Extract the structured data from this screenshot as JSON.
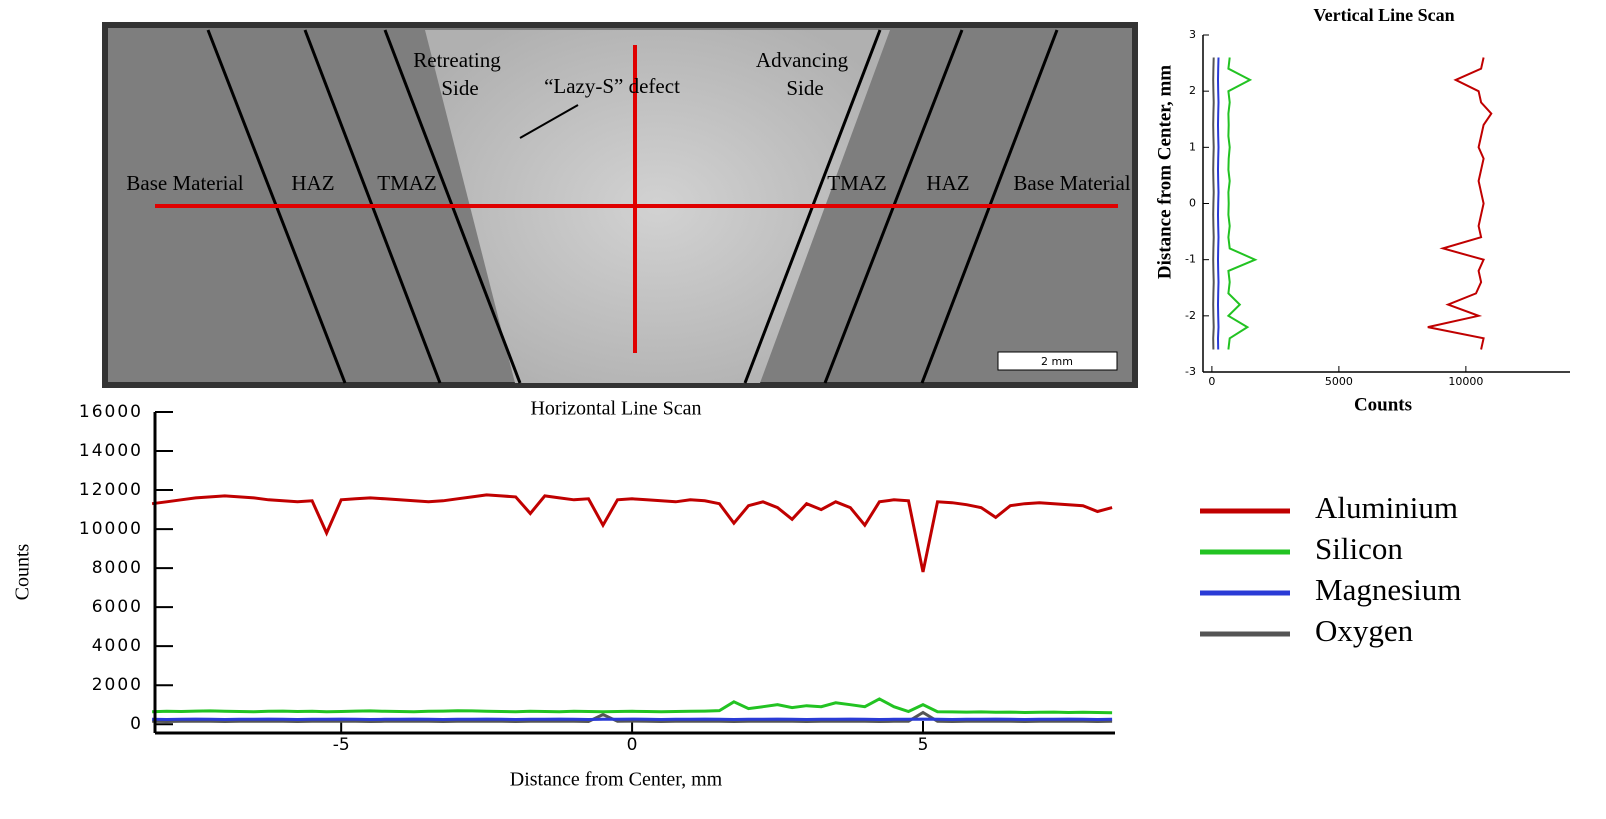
{
  "micrograph": {
    "labels": [
      "Retreating",
      "Side",
      "“Lazy-S” defect",
      "Advancing",
      "Side",
      "Base Material",
      "HAZ",
      "TMAZ",
      "TMAZ",
      "HAZ",
      "Base Material"
    ],
    "scale_bar": "2 mm"
  },
  "chart_data": [
    {
      "type": "line",
      "title": "Horizontal Line Scan",
      "x_label": "Distance from Center, mm",
      "y_label": "Counts",
      "x": [
        -8.25,
        -8,
        -7.75,
        -7.5,
        -7.25,
        -7,
        -6.75,
        -6.5,
        -6.25,
        -6,
        -5.75,
        -5.5,
        -5.25,
        -5,
        -4.75,
        -4.5,
        -4.25,
        -4,
        -3.75,
        -3.5,
        -3.25,
        -3,
        -2.75,
        -2.5,
        -2.25,
        -2,
        -1.75,
        -1.5,
        -1.25,
        -1,
        -0.75,
        -0.5,
        -0.25,
        0,
        0.25,
        0.5,
        0.75,
        1,
        1.25,
        1.5,
        1.75,
        2,
        2.25,
        2.5,
        2.75,
        3,
        3.25,
        3.5,
        3.75,
        4,
        4.25,
        4.5,
        4.75,
        5,
        5.25,
        5.5,
        5.75,
        6,
        6.25,
        6.5,
        6.75,
        7,
        7.25,
        7.5,
        7.75,
        8,
        8.25
      ],
      "series": [
        {
          "name": "Aluminium",
          "color": "#c00000",
          "values": [
            11300,
            11400,
            11500,
            11600,
            11650,
            11700,
            11650,
            11600,
            11500,
            11450,
            11400,
            11450,
            9800,
            11500,
            11550,
            11600,
            11550,
            11500,
            11450,
            11400,
            11450,
            11550,
            11650,
            11750,
            11700,
            11650,
            10800,
            11700,
            11600,
            11500,
            11550,
            10200,
            11500,
            11550,
            11500,
            11450,
            11400,
            11500,
            11450,
            11300,
            10300,
            11200,
            11400,
            11100,
            10500,
            11300,
            11000,
            11400,
            11100,
            10200,
            11400,
            11500,
            11450,
            7800,
            11400,
            11350,
            11250,
            11100,
            10600,
            11200,
            11300,
            11350,
            11300,
            11250,
            11200,
            10900,
            11100
          ]
        },
        {
          "name": "Silicon",
          "color": "#22c322",
          "values": [
            640,
            660,
            650,
            670,
            680,
            660,
            650,
            640,
            660,
            670,
            650,
            660,
            640,
            650,
            670,
            680,
            660,
            650,
            640,
            660,
            670,
            690,
            680,
            660,
            650,
            640,
            660,
            650,
            640,
            660,
            650,
            640,
            650,
            660,
            650,
            640,
            650,
            660,
            670,
            700,
            1150,
            800,
            900,
            1000,
            850,
            950,
            900,
            1100,
            1000,
            900,
            1300,
            900,
            650,
            1000,
            640,
            630,
            620,
            630,
            610,
            620,
            600,
            610,
            620,
            600,
            610,
            600,
            590
          ]
        },
        {
          "name": "Magnesium",
          "color": "#2a3bd6",
          "values": [
            250,
            240,
            250,
            260,
            250,
            240,
            250,
            250,
            260,
            250,
            240,
            250,
            250,
            260,
            250,
            240,
            250,
            250,
            260,
            250,
            240,
            250,
            250,
            260,
            250,
            240,
            250,
            250,
            260,
            250,
            240,
            250,
            250,
            260,
            250,
            240,
            250,
            250,
            260,
            250,
            240,
            250,
            250,
            260,
            250,
            240,
            250,
            250,
            260,
            250,
            240,
            250,
            250,
            260,
            250,
            240,
            250,
            250,
            260,
            250,
            240,
            250,
            250,
            260,
            250,
            240,
            250
          ]
        },
        {
          "name": "Oxygen",
          "color": "#555555",
          "values": [
            150,
            140,
            150,
            160,
            150,
            140,
            150,
            150,
            160,
            150,
            140,
            150,
            150,
            160,
            150,
            140,
            150,
            150,
            160,
            150,
            140,
            150,
            150,
            160,
            150,
            140,
            150,
            150,
            160,
            150,
            140,
            500,
            150,
            160,
            150,
            140,
            150,
            150,
            160,
            150,
            140,
            150,
            150,
            160,
            150,
            140,
            150,
            150,
            160,
            150,
            140,
            150,
            150,
            600,
            150,
            140,
            150,
            150,
            160,
            150,
            140,
            150,
            150,
            160,
            150,
            140,
            150
          ]
        }
      ],
      "xlim": [
        -8.2,
        8.3
      ],
      "xticks": [
        -5,
        0,
        5
      ],
      "ylim": [
        -450,
        16000
      ],
      "yticks": [
        0,
        2000,
        4000,
        6000,
        8000,
        10000,
        12000,
        14000,
        16000
      ]
    },
    {
      "type": "line",
      "orientation": "vertical",
      "title": "Vertical Line Scan",
      "x_label": "Counts",
      "y_label": "Distance from Center, mm",
      "y": [
        -2.6,
        -2.4,
        -2.2,
        -2,
        -1.8,
        -1.6,
        -1.4,
        -1.2,
        -1,
        -0.8,
        -0.6,
        -0.4,
        -0.2,
        0,
        0.2,
        0.4,
        0.6,
        0.8,
        1,
        1.2,
        1.4,
        1.6,
        1.8,
        2,
        2.2,
        2.4,
        2.6
      ],
      "series": [
        {
          "color": "#c00000",
          "values": [
            10600,
            10700,
            8500,
            10500,
            9300,
            10400,
            10600,
            10500,
            10700,
            9100,
            10600,
            10500,
            10600,
            10700,
            10600,
            10500,
            10600,
            10700,
            10500,
            10600,
            10700,
            11000,
            10600,
            10500,
            9600,
            10600,
            10700
          ]
        },
        {
          "color": "#22c322",
          "values": [
            650,
            700,
            1400,
            650,
            1100,
            650,
            700,
            650,
            1700,
            700,
            650,
            700,
            650,
            660,
            650,
            700,
            650,
            660,
            700,
            650,
            660,
            650,
            700,
            650,
            1500,
            650,
            700
          ]
        },
        {
          "color": "#2a3bd6",
          "values": [
            250,
            240,
            260,
            250,
            240,
            250,
            260,
            250,
            240,
            250,
            260,
            250,
            240,
            250,
            260,
            250,
            240,
            250,
            260,
            250,
            240,
            250,
            260,
            250,
            240,
            250,
            260
          ]
        },
        {
          "color": "#555555",
          "values": [
            60,
            50,
            70,
            60,
            50,
            60,
            70,
            60,
            50,
            60,
            70,
            60,
            50,
            60,
            70,
            60,
            50,
            60,
            70,
            60,
            50,
            60,
            70,
            60,
            50,
            60,
            70
          ]
        }
      ],
      "xlim": [
        -350,
        14100
      ],
      "xticks": [
        0,
        5000,
        10000
      ],
      "ylim": [
        -3,
        3
      ],
      "yticks": [
        -3,
        -2,
        -1,
        0,
        1,
        2,
        3
      ]
    }
  ]
}
